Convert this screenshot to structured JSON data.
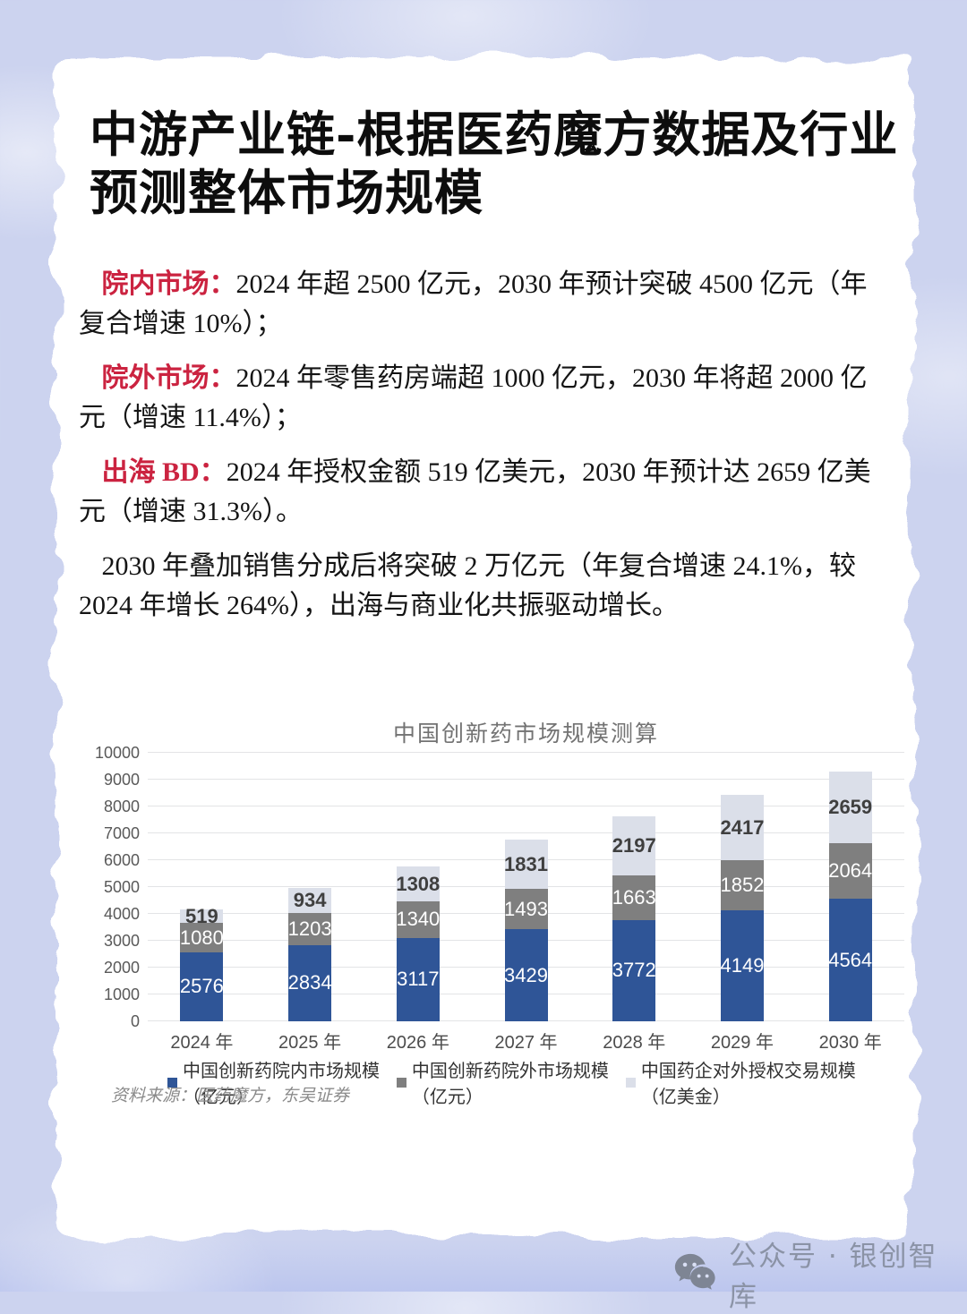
{
  "page": {
    "title": "中游产业链-根据医药魔方数据及行业预测整体市场规模"
  },
  "paragraphs": [
    {
      "label": "院内市场：",
      "text": "2024 年超 2500 亿元，2030 年预计突破 4500 亿元（年复合增速 10%）；"
    },
    {
      "label": "院外市场：",
      "text": "2024 年零售药房端超 1000 亿元，2030 年将超 2000 亿元（增速 11.4%）；"
    },
    {
      "label": "出海 BD：",
      "text": "2024 年授权金额 519 亿美元，2030 年预计达 2659 亿美元（增速 31.3%）。"
    },
    {
      "label": "",
      "text": "2030 年叠加销售分成后将突破 2 万亿元（年复合增速 24.1%，较 2024 年增长 264%），出海与商业化共振驱动增长。"
    }
  ],
  "chart_data": {
    "type": "bar",
    "stacked": true,
    "title": "中国创新药市场规模测算",
    "categories": [
      "2024 年",
      "2025 年",
      "2026 年",
      "2027 年",
      "2028 年",
      "2029 年",
      "2030 年"
    ],
    "series": [
      {
        "name": "中国创新药院内市场规模（亿元）",
        "color": "#2f5597",
        "label_color": "#ffffff",
        "label_bold": false,
        "values": [
          2576,
          2834,
          3117,
          3429,
          3772,
          4149,
          4564
        ]
      },
      {
        "name": "中国创新药院外市场规模（亿元）",
        "color": "#7f7f7f",
        "label_color": "#ffffff",
        "label_bold": false,
        "values": [
          1080,
          1203,
          1340,
          1493,
          1663,
          1852,
          2064
        ]
      },
      {
        "name": "中国药企对外授权交易规模（亿美金）",
        "color": "#dbdfe9",
        "label_color": "#3f3f3f",
        "label_bold": true,
        "values": [
          519,
          934,
          1308,
          1831,
          2197,
          2417,
          2659
        ]
      }
    ],
    "ylim": [
      0,
      10000
    ],
    "ytick_step": 1000,
    "grid": true,
    "legend_position": "bottom",
    "source": "资料来源：医药魔方，东吴证券"
  },
  "watermark": {
    "icon": "wechat-icon",
    "text": "公众号 · 银创智库"
  }
}
